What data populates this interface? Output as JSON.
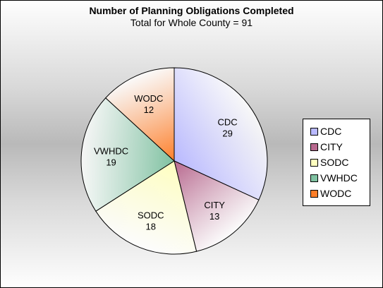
{
  "chart_data": {
    "type": "pie",
    "title": "Number of Planning Obligations Completed",
    "subtitle": "Total for Whole County = 91",
    "categories": [
      "CDC",
      "CITY",
      "SODC",
      "VWHDC",
      "WODC"
    ],
    "values": [
      29,
      13,
      18,
      19,
      12
    ],
    "colors": [
      "#b9b9ff",
      "#b8698f",
      "#ffffbf",
      "#7fc1a1",
      "#ff7f2a"
    ],
    "legend_position": "right",
    "data_labels": true
  }
}
